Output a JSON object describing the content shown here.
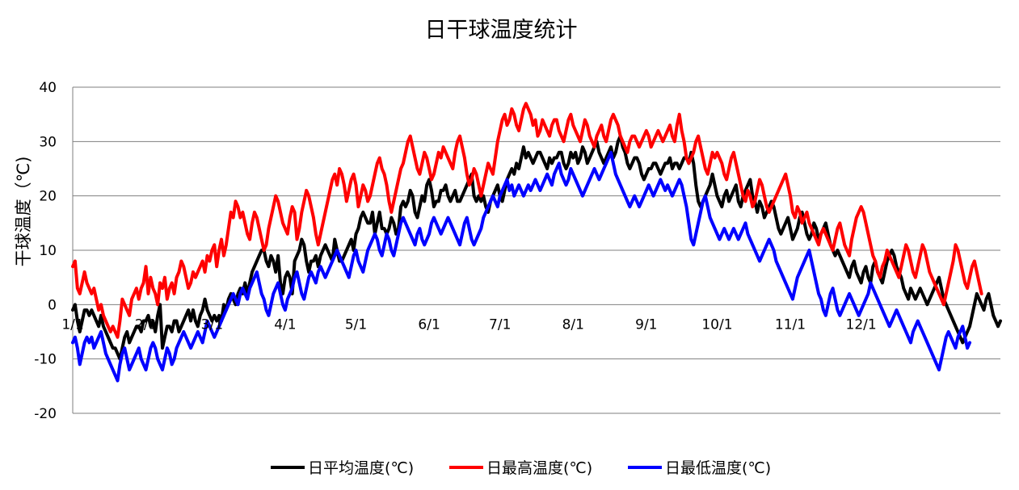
{
  "chart_data": {
    "type": "line",
    "title": "日干球温度统计",
    "ylabel": "干球温度（℃)",
    "xlabel": "",
    "ylim": [
      -20,
      40
    ],
    "yticks": [
      "40",
      "30",
      "20",
      "10",
      "0",
      "-10",
      "-20"
    ],
    "xticks": [
      "1/1",
      "2/1",
      "3/1",
      "4/1",
      "5/1",
      "6/1",
      "7/1",
      "8/1",
      "9/1",
      "10/1",
      "11/1",
      "12/1"
    ],
    "legend_position": "bottom",
    "grid": "horizontal",
    "categories_note": "daily values, 1/1 to 12/31",
    "series": [
      {
        "name": "日平均温度(℃)",
        "color": "#000000",
        "values": [
          -1,
          0,
          -3,
          -5,
          -3,
          -1,
          -1,
          -2,
          -1,
          -2,
          -3,
          -4,
          -2,
          -4,
          -5,
          -6,
          -7,
          -8,
          -8,
          -9,
          -10,
          -8,
          -6,
          -5,
          -7,
          -6,
          -5,
          -4,
          -4,
          -5,
          -3,
          -3,
          -2,
          -4,
          -3,
          -5,
          -2,
          0,
          -8,
          -6,
          -4,
          -4,
          -5,
          -3,
          -3,
          -5,
          -4,
          -3,
          -2,
          -1,
          -3,
          -1,
          -3,
          -4,
          -2,
          -1,
          1,
          -1,
          -2,
          -3,
          -2,
          -3,
          -2,
          -3,
          0,
          -1,
          1,
          2,
          1,
          0,
          2,
          3,
          2,
          4,
          2,
          4,
          6,
          7,
          8,
          9,
          10,
          10,
          8,
          7,
          9,
          8,
          6,
          9,
          4,
          2,
          5,
          6,
          5,
          2,
          8,
          9,
          10,
          12,
          11,
          8,
          6,
          8,
          8,
          9,
          7,
          9,
          10,
          11,
          10,
          9,
          8,
          12,
          10,
          8,
          8,
          9,
          10,
          11,
          12,
          10,
          13,
          14,
          16,
          17,
          16,
          15,
          15,
          17,
          13,
          15,
          17,
          14,
          14,
          13,
          14,
          16,
          15,
          13,
          14,
          18,
          19,
          18,
          19,
          21,
          20,
          17,
          16,
          18,
          20,
          19,
          22,
          23,
          21,
          18,
          19,
          19,
          21,
          21,
          22,
          20,
          19,
          20,
          21,
          19,
          19,
          20,
          21,
          22,
          23,
          24,
          20,
          19,
          20,
          19,
          20,
          18,
          17,
          19,
          20,
          21,
          22,
          20,
          19,
          21,
          23,
          24,
          25,
          24,
          26,
          25,
          27,
          29,
          27,
          28,
          27,
          26,
          27,
          28,
          28,
          27,
          26,
          25,
          27,
          26,
          27,
          27,
          28,
          28,
          26,
          25,
          26,
          28,
          27,
          28,
          26,
          27,
          29,
          28,
          26,
          27,
          28,
          29,
          30,
          28,
          27,
          26,
          27,
          28,
          29,
          27,
          28,
          30,
          31,
          29,
          28,
          26,
          25,
          26,
          27,
          27,
          26,
          24,
          23,
          24,
          25,
          25,
          26,
          26,
          25,
          24,
          25,
          26,
          26,
          27,
          25,
          26,
          26,
          25,
          26,
          27,
          27,
          26,
          28,
          26,
          22,
          19,
          18,
          19,
          20,
          21,
          22,
          24,
          22,
          20,
          19,
          18,
          20,
          21,
          19,
          20,
          21,
          22,
          19,
          18,
          20,
          21,
          22,
          23,
          20,
          19,
          17,
          19,
          18,
          16,
          17,
          18,
          19,
          18,
          16,
          14,
          13,
          14,
          15,
          16,
          14,
          12,
          13,
          14,
          16,
          17,
          15,
          13,
          12,
          13,
          15,
          14,
          12,
          13,
          14,
          15,
          13,
          11,
          10,
          9,
          10,
          9,
          8,
          7,
          6,
          5,
          7,
          8,
          6,
          5,
          4,
          6,
          7,
          5,
          4,
          7,
          8,
          6,
          5,
          4,
          6,
          8,
          9,
          10,
          9,
          7,
          6,
          5,
          3,
          2,
          1,
          3,
          2,
          1,
          2,
          3,
          2,
          1,
          0,
          1,
          2,
          3,
          4,
          5,
          3,
          1,
          0,
          -1,
          -2,
          -3,
          -4,
          -5,
          -6,
          -7,
          -6,
          -5,
          -4,
          -2,
          0,
          2,
          1,
          0,
          -1,
          1,
          2,
          0,
          -2,
          -3,
          -4,
          -3
        ]
      },
      {
        "name": "日最高温度(℃)",
        "color": "#ff0000",
        "values": [
          7,
          8,
          3,
          2,
          4,
          6,
          4,
          3,
          2,
          3,
          1,
          -1,
          0,
          -2,
          -3,
          -4,
          -5,
          -4,
          -5,
          -6,
          -3,
          1,
          0,
          -1,
          -2,
          1,
          2,
          3,
          1,
          3,
          4,
          7,
          2,
          5,
          3,
          2,
          0,
          4,
          3,
          5,
          1,
          3,
          4,
          2,
          5,
          6,
          8,
          7,
          5,
          3,
          4,
          6,
          5,
          6,
          7,
          8,
          6,
          9,
          8,
          10,
          11,
          7,
          10,
          12,
          9,
          11,
          14,
          17,
          16,
          19,
          18,
          16,
          17,
          15,
          13,
          12,
          15,
          17,
          16,
          14,
          12,
          10,
          11,
          14,
          16,
          18,
          20,
          19,
          17,
          15,
          14,
          13,
          16,
          18,
          17,
          12,
          14,
          17,
          19,
          21,
          20,
          18,
          16,
          13,
          11,
          13,
          15,
          17,
          19,
          21,
          23,
          24,
          22,
          25,
          24,
          22,
          19,
          21,
          23,
          24,
          22,
          18,
          20,
          22,
          21,
          19,
          20,
          22,
          24,
          26,
          27,
          25,
          24,
          22,
          19,
          17,
          19,
          21,
          23,
          25,
          26,
          28,
          30,
          31,
          29,
          27,
          25,
          24,
          26,
          28,
          27,
          25,
          23,
          24,
          26,
          28,
          27,
          29,
          28,
          27,
          26,
          25,
          28,
          30,
          31,
          29,
          27,
          24,
          22,
          23,
          25,
          24,
          22,
          20,
          22,
          24,
          26,
          25,
          24,
          27,
          30,
          32,
          34,
          35,
          33,
          34,
          36,
          35,
          33,
          32,
          34,
          36,
          37,
          36,
          35,
          33,
          34,
          31,
          32,
          34,
          33,
          32,
          31,
          33,
          34,
          34,
          32,
          31,
          30,
          32,
          34,
          35,
          33,
          32,
          31,
          30,
          32,
          34,
          33,
          31,
          30,
          29,
          31,
          32,
          33,
          31,
          30,
          32,
          34,
          35,
          34,
          33,
          31,
          30,
          29,
          28,
          30,
          31,
          31,
          30,
          29,
          30,
          31,
          32,
          31,
          29,
          30,
          31,
          32,
          31,
          30,
          31,
          32,
          33,
          31,
          30,
          33,
          35,
          32,
          30,
          27,
          26,
          27,
          28,
          30,
          31,
          29,
          27,
          25,
          24,
          26,
          28,
          27,
          28,
          27,
          26,
          24,
          23,
          25,
          27,
          28,
          26,
          24,
          22,
          20,
          19,
          21,
          20,
          18,
          19,
          21,
          23,
          22,
          20,
          18,
          17,
          18,
          19,
          20,
          21,
          22,
          23,
          24,
          22,
          20,
          17,
          16,
          18,
          17,
          15,
          16,
          17,
          15,
          14,
          13,
          12,
          11,
          13,
          14,
          13,
          12,
          11,
          10,
          12,
          14,
          15,
          13,
          11,
          10,
          9,
          12,
          14,
          16,
          17,
          18,
          17,
          15,
          13,
          11,
          9,
          8,
          6,
          5,
          7,
          8,
          10,
          9,
          8,
          7,
          6,
          5,
          7,
          9,
          11,
          10,
          8,
          6,
          5,
          7,
          9,
          11,
          10,
          8,
          6,
          5,
          4,
          3,
          2,
          1,
          0,
          2,
          4,
          6,
          8,
          11,
          10,
          8,
          6,
          4,
          3,
          5,
          7,
          8,
          6,
          4,
          2
        ]
      },
      {
        "name": "日最低温度(℃)",
        "color": "#0000ff",
        "values": [
          -7,
          -6,
          -8,
          -11,
          -9,
          -7,
          -6,
          -7,
          -6,
          -8,
          -7,
          -6,
          -5,
          -7,
          -9,
          -10,
          -11,
          -12,
          -13,
          -14,
          -11,
          -9,
          -8,
          -10,
          -12,
          -11,
          -10,
          -9,
          -8,
          -10,
          -11,
          -12,
          -10,
          -8,
          -7,
          -8,
          -10,
          -11,
          -12,
          -10,
          -8,
          -9,
          -11,
          -10,
          -8,
          -7,
          -6,
          -5,
          -6,
          -7,
          -8,
          -7,
          -6,
          -5,
          -6,
          -7,
          -5,
          -3,
          -4,
          -5,
          -6,
          -5,
          -4,
          -3,
          -2,
          -1,
          0,
          1,
          2,
          1,
          0,
          2,
          3,
          2,
          1,
          3,
          4,
          5,
          6,
          4,
          2,
          1,
          -1,
          -2,
          0,
          2,
          3,
          4,
          2,
          0,
          -1,
          1,
          2,
          3,
          5,
          6,
          4,
          2,
          1,
          3,
          5,
          6,
          5,
          4,
          6,
          7,
          6,
          5,
          6,
          7,
          8,
          9,
          10,
          9,
          8,
          7,
          6,
          5,
          7,
          9,
          10,
          8,
          7,
          6,
          8,
          10,
          11,
          12,
          13,
          12,
          10,
          9,
          11,
          13,
          12,
          10,
          9,
          11,
          13,
          15,
          16,
          15,
          14,
          13,
          12,
          11,
          13,
          14,
          12,
          11,
          12,
          13,
          15,
          16,
          15,
          14,
          13,
          14,
          15,
          16,
          15,
          14,
          13,
          12,
          11,
          13,
          15,
          16,
          14,
          12,
          11,
          12,
          13,
          14,
          16,
          17,
          18,
          19,
          20,
          19,
          18,
          20,
          21,
          22,
          23,
          21,
          22,
          20,
          21,
          22,
          21,
          20,
          21,
          22,
          21,
          22,
          23,
          22,
          21,
          22,
          23,
          24,
          23,
          22,
          24,
          25,
          26,
          24,
          23,
          22,
          23,
          25,
          24,
          23,
          22,
          21,
          20,
          21,
          22,
          23,
          24,
          25,
          24,
          23,
          24,
          25,
          26,
          27,
          28,
          26,
          24,
          23,
          22,
          21,
          20,
          19,
          18,
          19,
          20,
          19,
          18,
          19,
          20,
          21,
          22,
          21,
          20,
          21,
          22,
          23,
          22,
          21,
          22,
          21,
          20,
          21,
          22,
          23,
          22,
          20,
          18,
          15,
          12,
          11,
          13,
          15,
          17,
          19,
          20,
          18,
          16,
          15,
          14,
          13,
          12,
          13,
          14,
          13,
          12,
          13,
          14,
          13,
          12,
          13,
          14,
          15,
          13,
          12,
          11,
          10,
          9,
          8,
          9,
          10,
          11,
          12,
          11,
          10,
          8,
          7,
          6,
          5,
          4,
          3,
          2,
          1,
          3,
          5,
          6,
          7,
          8,
          9,
          10,
          8,
          6,
          4,
          2,
          1,
          -1,
          -2,
          0,
          2,
          3,
          1,
          -1,
          -2,
          -1,
          0,
          1,
          2,
          1,
          0,
          -1,
          -2,
          -1,
          0,
          1,
          2,
          4,
          3,
          2,
          1,
          0,
          -1,
          -2,
          -3,
          -4,
          -3,
          -2,
          -1,
          -2,
          -3,
          -4,
          -5,
          -6,
          -7,
          -5,
          -4,
          -3,
          -4,
          -5,
          -6,
          -7,
          -8,
          -9,
          -10,
          -11,
          -12,
          -10,
          -8,
          -6,
          -5,
          -6,
          -7,
          -8,
          -6,
          -5,
          -4,
          -6,
          -8,
          -7
        ]
      }
    ]
  }
}
